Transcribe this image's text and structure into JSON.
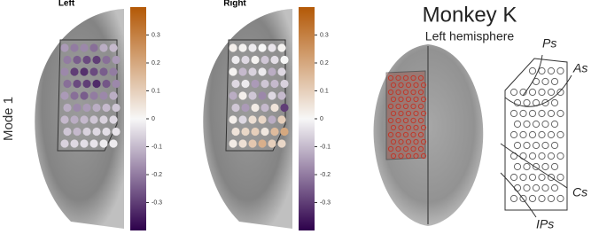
{
  "row_label": "Mode 1",
  "colorbar": {
    "lim": [
      -0.4,
      0.4
    ],
    "ticks": [
      0.3,
      0.2,
      0.1,
      0,
      -0.1,
      -0.2,
      -0.3
    ],
    "min_color": "#2d004b",
    "mid_color": "#f7f7f7",
    "max_color": "#b35806"
  },
  "panels": [
    {
      "title": "Left",
      "values": [
        [
          -0.15,
          -0.2,
          -0.18,
          -0.22,
          -0.12,
          -0.1
        ],
        [
          -0.2,
          -0.25,
          -0.28,
          -0.3,
          -0.22,
          -0.15
        ],
        [
          -0.18,
          -0.3,
          -0.32,
          -0.28,
          -0.25,
          -0.2
        ],
        [
          -0.22,
          -0.28,
          -0.3,
          -0.33,
          -0.26,
          -0.18
        ],
        [
          -0.15,
          -0.22,
          -0.25,
          -0.2,
          -0.18,
          -0.12
        ],
        [
          -0.12,
          -0.18,
          -0.15,
          -0.12,
          -0.1,
          -0.08
        ],
        [
          -0.1,
          -0.12,
          -0.1,
          -0.08,
          -0.06,
          -0.05
        ],
        [
          -0.08,
          -0.1,
          -0.06,
          -0.05,
          -0.04,
          -0.03
        ],
        [
          -0.06,
          -0.05,
          -0.04,
          -0.03,
          -0.02,
          -0.02
        ]
      ]
    },
    {
      "title": "Right",
      "values": [
        [
          0.02,
          0.01,
          -0.02,
          0.0,
          -0.03,
          0.01
        ],
        [
          -0.02,
          -0.05,
          0.01,
          -0.08,
          -0.04,
          0.0
        ],
        [
          0.01,
          -0.1,
          -0.06,
          -0.02,
          -0.12,
          -0.05
        ],
        [
          -0.05,
          -0.02,
          -0.15,
          -0.08,
          -0.1,
          -0.06
        ],
        [
          -0.12,
          0.02,
          -0.08,
          -0.18,
          -0.05,
          -0.1
        ],
        [
          -0.08,
          -0.15,
          0.03,
          -0.1,
          0.05,
          -0.3
        ],
        [
          0.02,
          -0.05,
          0.06,
          0.08,
          -0.12,
          0.1
        ],
        [
          0.05,
          0.08,
          0.1,
          0.04,
          0.15,
          0.2
        ],
        [
          0.03,
          0.06,
          0.12,
          0.18,
          0.1,
          0.08
        ]
      ]
    }
  ],
  "diagram": {
    "title": "Monkey K",
    "subtitle": "Left hemisphere",
    "labels": [
      "Ps",
      "As",
      "Cs",
      "IPs"
    ]
  }
}
